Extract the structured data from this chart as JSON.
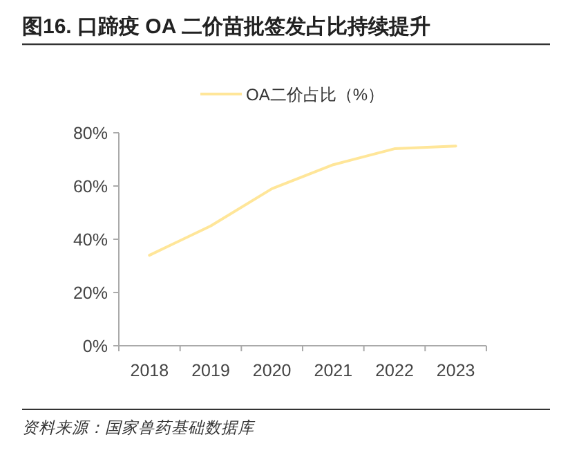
{
  "chart_data": {
    "type": "line",
    "title": "图16. 口蹄疫 OA 二价苗批签发占比持续提升",
    "categories": [
      "2018",
      "2019",
      "2020",
      "2021",
      "2022",
      "2023"
    ],
    "series": [
      {
        "name": "OA二价占比（%）",
        "color": "#ffe699",
        "values": [
          34,
          45,
          59,
          68,
          74,
          75
        ]
      }
    ],
    "ylim": [
      0,
      80
    ],
    "yticks": [
      {
        "value": 0,
        "label": "0%"
      },
      {
        "value": 20,
        "label": "20%"
      },
      {
        "value": 40,
        "label": "40%"
      },
      {
        "value": 60,
        "label": "60%"
      },
      {
        "value": 80,
        "label": "80%"
      }
    ],
    "grid": false,
    "legend": "top",
    "marker": "none",
    "line_style": "solid",
    "annotations": [
      "资料来源：国家兽药基础数据库"
    ]
  }
}
